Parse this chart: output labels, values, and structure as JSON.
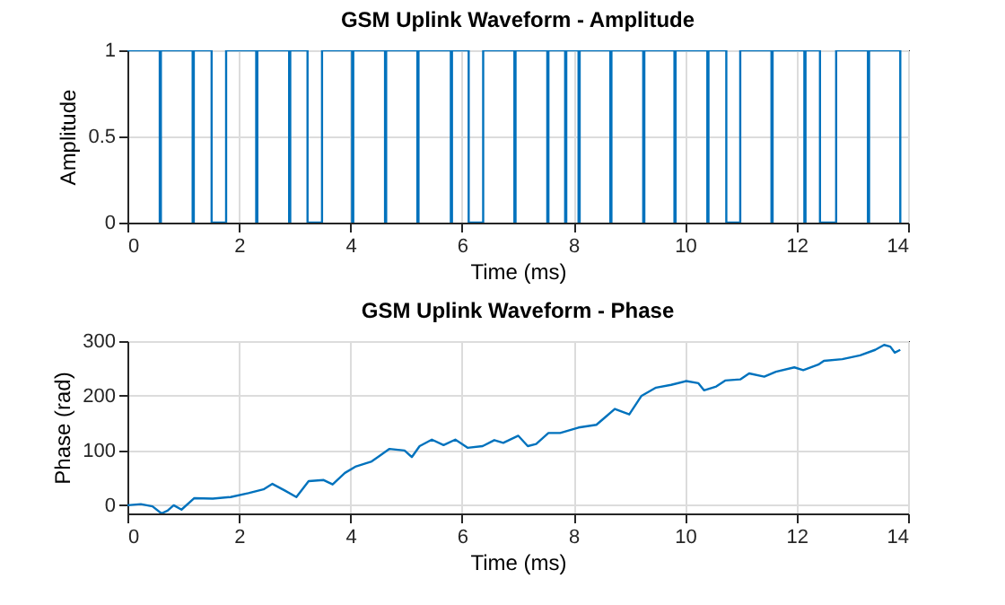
{
  "chart_data": [
    {
      "type": "step",
      "title": "GSM Uplink Waveform - Amplitude",
      "xlabel": "Time (ms)",
      "ylabel": "Amplitude",
      "xlim": [
        0,
        14
      ],
      "xticks": [
        0,
        2,
        4,
        6,
        8,
        10,
        12,
        14
      ],
      "ylim": [
        0,
        1
      ],
      "yticks": [
        0,
        0.5,
        1
      ],
      "grid": true,
      "series": [
        {
          "color": "#0072bd",
          "x": [
            0,
            0.58,
            0.6,
            1.17,
            1.19,
            1.51,
            1.77,
            2.31,
            2.33,
            2.9,
            2.92,
            3.23,
            3.49,
            4.03,
            4.05,
            4.62,
            4.64,
            5.2,
            5.22,
            5.8,
            5.82,
            6.12,
            6.38,
            6.94,
            6.96,
            7.53,
            7.55,
            7.85,
            7.87,
            8.09,
            8.11,
            8.66,
            8.68,
            9.25,
            9.27,
            9.81,
            9.83,
            10.4,
            10.42,
            10.74,
            10.99,
            11.55,
            11.57,
            12.14,
            12.16,
            12.42,
            12.71,
            13.28,
            13.3,
            13.86
          ],
          "values": [
            1,
            0,
            1,
            0,
            1,
            0,
            1,
            0,
            1,
            0,
            1,
            0,
            1,
            0,
            1,
            0,
            1,
            0,
            1,
            0,
            1,
            0,
            1,
            0,
            1,
            0,
            1,
            0,
            1,
            0,
            1,
            0,
            1,
            0,
            1,
            0,
            1,
            0,
            1,
            0,
            1,
            0,
            1,
            0,
            1,
            0,
            1,
            0,
            1,
            0
          ]
        }
      ]
    },
    {
      "type": "line",
      "title": "GSM Uplink Waveform - Phase",
      "xlabel": "Time (ms)",
      "ylabel": "Phase (rad)",
      "xlim": [
        0,
        14
      ],
      "xticks": [
        0,
        2,
        4,
        6,
        8,
        10,
        12,
        14
      ],
      "ylim": [
        -15,
        300
      ],
      "yticks": [
        0,
        100,
        200,
        300
      ],
      "grid": true,
      "series": [
        {
          "color": "#0072bd",
          "x": [
            0,
            0.24,
            0.45,
            0.61,
            0.72,
            0.83,
            0.97,
            1.2,
            1.53,
            1.85,
            2.17,
            2.44,
            2.6,
            2.82,
            3.03,
            3.25,
            3.52,
            3.68,
            3.9,
            4.1,
            4.38,
            4.7,
            4.97,
            5.1,
            5.24,
            5.46,
            5.67,
            5.88,
            6.1,
            6.37,
            6.58,
            6.74,
            7.01,
            7.18,
            7.33,
            7.55,
            7.76,
            8.09,
            8.41,
            8.57,
            8.74,
            9.0,
            9.22,
            9.48,
            9.75,
            10.02,
            10.24,
            10.34,
            10.56,
            10.72,
            10.99,
            11.15,
            11.42,
            11.63,
            11.96,
            12.12,
            12.39,
            12.49,
            12.82,
            13.14,
            13.41,
            13.57,
            13.68,
            13.76,
            13.86
          ],
          "values": [
            0,
            2,
            -2,
            -15,
            -10,
            0,
            -8,
            13,
            12,
            15,
            22,
            29,
            39,
            27,
            15,
            44,
            46,
            38,
            59,
            71,
            80,
            103,
            100,
            88,
            108,
            120,
            110,
            120,
            105,
            108,
            119,
            114,
            127,
            108,
            112,
            132,
            132,
            142,
            147,
            161,
            176,
            166,
            200,
            215,
            220,
            227,
            223,
            210,
            217,
            228,
            230,
            241,
            235,
            244,
            252,
            247,
            257,
            264,
            267,
            274,
            284,
            293,
            290,
            279,
            284
          ]
        }
      ]
    }
  ]
}
